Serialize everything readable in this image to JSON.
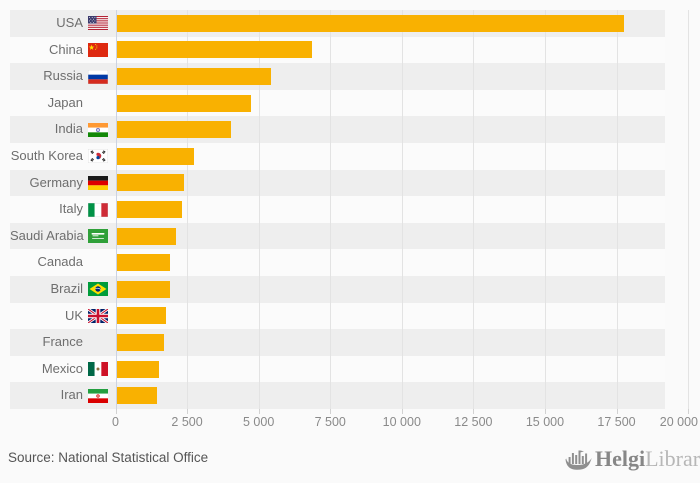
{
  "page": {
    "background": "#fafafa"
  },
  "chart_data": {
    "type": "bar",
    "orientation": "horizontal",
    "title": "",
    "xlabel": "",
    "ylabel": "",
    "categories": [
      "USA",
      "China",
      "Russia",
      "Japan",
      "India",
      "South Korea",
      "Germany",
      "Italy",
      "Saudi Arabia",
      "Canada",
      "Brazil",
      "UK",
      "France",
      "Mexico",
      "Iran"
    ],
    "values": [
      17750,
      6850,
      5430,
      4730,
      4030,
      2740,
      2390,
      2310,
      2110,
      1900,
      1900,
      1750,
      1690,
      1500,
      1440
    ],
    "flag_icons": [
      "usa-flag",
      "china-flag",
      "russia-flag",
      null,
      "india-flag",
      "south-korea-flag",
      "germany-flag",
      "italy-flag",
      "saudi-arabia-flag",
      null,
      "brazil-flag",
      "uk-flag",
      null,
      "mexico-flag",
      "iran-flag"
    ],
    "xlim": [
      0,
      20000
    ],
    "x_ticks": [
      0,
      2500,
      5000,
      7500,
      10000,
      12500,
      15000,
      17500,
      20000
    ],
    "x_tick_labels": [
      "0",
      "2 500",
      "5 000",
      "7 500",
      "10 000",
      "12 500",
      "15 000",
      "17 500",
      "20 000"
    ],
    "grid": true,
    "legend": false,
    "bar_color": "#f9b101",
    "row_band_color": "#eeeeee",
    "zero_line_color": "#ccd3e2",
    "grid_line_color": "#e3e3e3"
  },
  "footer": {
    "source_text": "Source: National Statistical Office",
    "logo": {
      "brand_bold": "Helgi",
      "brand_light": "Library.",
      "icon": "helgi-ship-icon"
    }
  }
}
